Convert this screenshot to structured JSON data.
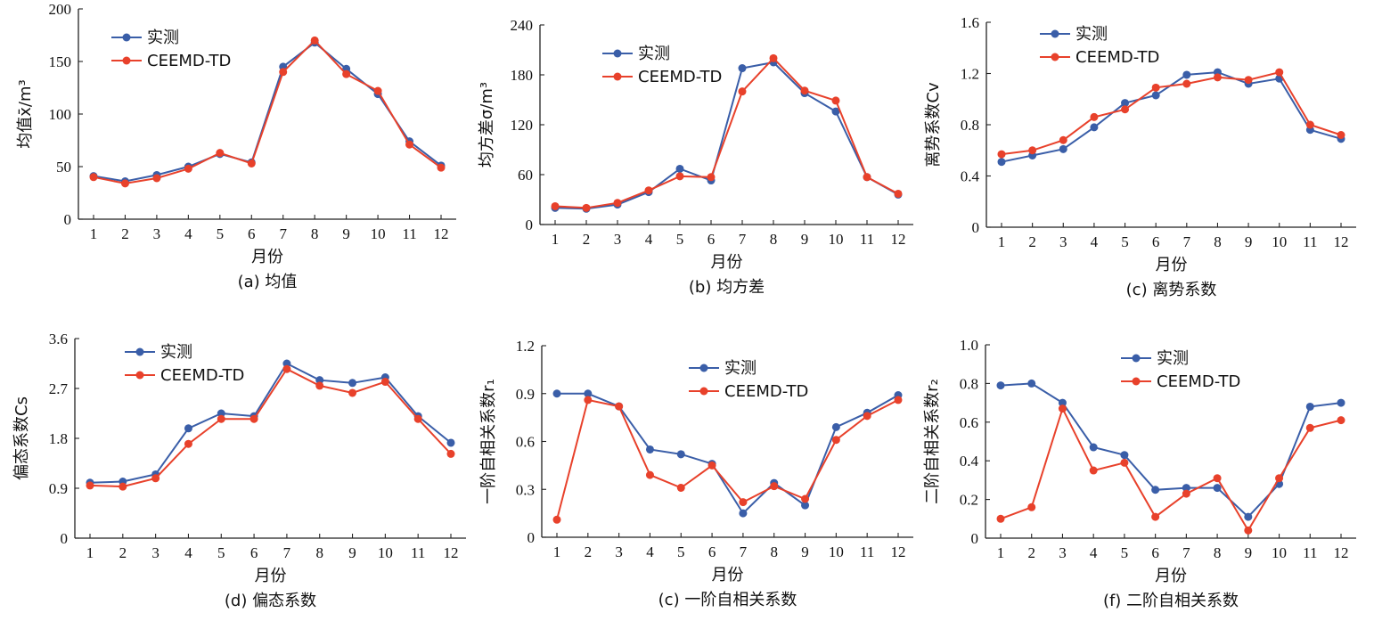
{
  "colors": {
    "measured": "#3a5ea8",
    "model": "#e8412b"
  },
  "chart_data": [
    {
      "id": "a",
      "type": "line",
      "caption": "(a) 均值",
      "xlabel": "月份",
      "ylabel": "均值x̄/m³",
      "categories": [
        "1",
        "2",
        "3",
        "4",
        "5",
        "6",
        "7",
        "8",
        "9",
        "10",
        "11",
        "12"
      ],
      "ylim": [
        0,
        200
      ],
      "yticks": [
        "0",
        "50",
        "100",
        "150",
        "200"
      ],
      "legend": {
        "position": "top-left",
        "entries": [
          "实测",
          "CEEMD-TD"
        ]
      },
      "series": [
        {
          "name": "实测",
          "values": [
            41,
            36,
            42,
            50,
            62,
            54,
            145,
            168,
            143,
            119,
            74,
            51
          ]
        },
        {
          "name": "CEEMD-TD",
          "values": [
            40,
            34,
            39,
            48,
            63,
            53,
            140,
            170,
            138,
            122,
            71,
            49
          ]
        }
      ]
    },
    {
      "id": "b",
      "type": "line",
      "caption": "(b) 均方差",
      "xlabel": "月份",
      "ylabel": "均方差σ/m³",
      "categories": [
        "1",
        "2",
        "3",
        "4",
        "5",
        "6",
        "7",
        "8",
        "9",
        "10",
        "11",
        "12"
      ],
      "ylim": [
        0,
        240
      ],
      "yticks": [
        "0",
        "60",
        "120",
        "180",
        "240"
      ],
      "legend": {
        "position": "top-left",
        "entries": [
          "实测",
          "CEEMD-TD"
        ]
      },
      "series": [
        {
          "name": "实测",
          "values": [
            20,
            19,
            24,
            39,
            67,
            53,
            188,
            195,
            158,
            136,
            57,
            36
          ]
        },
        {
          "name": "CEEMD-TD",
          "values": [
            22,
            20,
            26,
            41,
            58,
            57,
            160,
            200,
            161,
            149,
            57,
            37
          ]
        }
      ]
    },
    {
      "id": "c1",
      "type": "line",
      "caption": "(c) 离势系数",
      "xlabel": "月份",
      "ylabel": "离势系数Cv",
      "categories": [
        "1",
        "2",
        "3",
        "4",
        "5",
        "6",
        "7",
        "8",
        "9",
        "10",
        "11",
        "12"
      ],
      "ylim": [
        0,
        1.6
      ],
      "yticks": [
        "0",
        "0.4",
        "0.8",
        "1.2",
        "1.6"
      ],
      "legend": {
        "position": "top-left",
        "entries": [
          "实测",
          "CEEMD-TD"
        ]
      },
      "series": [
        {
          "name": "实测",
          "values": [
            0.51,
            0.56,
            0.61,
            0.78,
            0.97,
            1.03,
            1.19,
            1.21,
            1.12,
            1.16,
            0.76,
            0.69
          ]
        },
        {
          "name": "CEEMD-TD",
          "values": [
            0.57,
            0.6,
            0.68,
            0.86,
            0.92,
            1.09,
            1.12,
            1.17,
            1.15,
            1.21,
            0.8,
            0.72
          ]
        }
      ]
    },
    {
      "id": "d",
      "type": "line",
      "caption": "(d) 偏态系数",
      "xlabel": "月份",
      "ylabel": "偏态系数Cs",
      "categories": [
        "1",
        "2",
        "3",
        "4",
        "5",
        "6",
        "7",
        "8",
        "9",
        "10",
        "11",
        "12"
      ],
      "ylim": [
        0,
        3.6
      ],
      "yticks": [
        "0",
        "0.9",
        "1.8",
        "2.7",
        "3.6"
      ],
      "legend": {
        "position": "top-left",
        "entries": [
          "实测",
          "CEEMD-TD"
        ]
      },
      "series": [
        {
          "name": "实测",
          "values": [
            1.0,
            1.02,
            1.15,
            1.98,
            2.25,
            2.2,
            3.15,
            2.85,
            2.8,
            2.9,
            2.2,
            1.72
          ]
        },
        {
          "name": "CEEMD-TD",
          "values": [
            0.95,
            0.93,
            1.08,
            1.7,
            2.15,
            2.15,
            3.05,
            2.75,
            2.62,
            2.82,
            2.15,
            1.52
          ]
        }
      ]
    },
    {
      "id": "c2",
      "type": "line",
      "caption": "(c) 一阶自相关系数",
      "xlabel": "月份",
      "ylabel": "一阶自相关系数r₁",
      "categories": [
        "1",
        "2",
        "3",
        "4",
        "5",
        "6",
        "7",
        "8",
        "9",
        "10",
        "11",
        "12"
      ],
      "ylim": [
        0,
        1.2
      ],
      "yticks": [
        "0",
        "0.3",
        "0.6",
        "0.9",
        "1.2"
      ],
      "legend": {
        "position": "top-right",
        "entries": [
          "实测",
          "CEEMD-TD"
        ]
      },
      "series": [
        {
          "name": "实测",
          "values": [
            0.9,
            0.9,
            0.82,
            0.55,
            0.52,
            0.46,
            0.15,
            0.34,
            0.2,
            0.69,
            0.78,
            0.89
          ]
        },
        {
          "name": "CEEMD-TD",
          "values": [
            0.11,
            0.86,
            0.82,
            0.39,
            0.31,
            0.45,
            0.22,
            0.32,
            0.24,
            0.61,
            0.76,
            0.86
          ]
        }
      ]
    },
    {
      "id": "f",
      "type": "line",
      "caption": "(f) 二阶自相关系数",
      "xlabel": "月份",
      "ylabel": "二阶自相关系数r₂",
      "categories": [
        "1",
        "2",
        "3",
        "4",
        "5",
        "6",
        "7",
        "8",
        "9",
        "10",
        "11",
        "12"
      ],
      "ylim": [
        0,
        1.0
      ],
      "yticks": [
        "0",
        "0.2",
        "0.4",
        "0.6",
        "0.8",
        "1.0"
      ],
      "legend": {
        "position": "top-right",
        "entries": [
          "实测",
          "CEEMD-TD"
        ]
      },
      "series": [
        {
          "name": "实测",
          "values": [
            0.79,
            0.8,
            0.7,
            0.47,
            0.43,
            0.25,
            0.26,
            0.26,
            0.11,
            0.28,
            0.68,
            0.7
          ]
        },
        {
          "name": "CEEMD-TD",
          "values": [
            0.1,
            0.16,
            0.67,
            0.35,
            0.39,
            0.11,
            0.23,
            0.31,
            0.04,
            0.31,
            0.57,
            0.61
          ]
        }
      ]
    }
  ]
}
